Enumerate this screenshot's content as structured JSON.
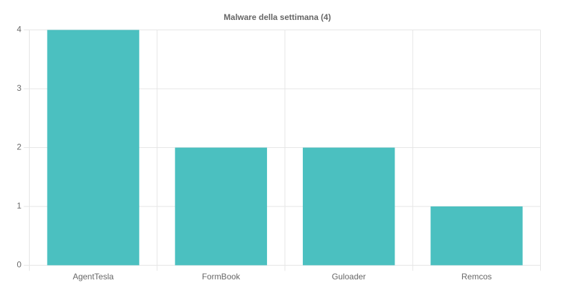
{
  "chart_data": {
    "type": "bar",
    "title": "Malware della settimana (4)",
    "categories": [
      "AgentTesla",
      "FormBook",
      "Guloader",
      "Remcos"
    ],
    "values": [
      4,
      2,
      2,
      1
    ],
    "color": "#4bc0c0",
    "ylim": [
      0,
      4
    ],
    "yticks": [
      0,
      1,
      2,
      3,
      4
    ],
    "grid": true
  }
}
